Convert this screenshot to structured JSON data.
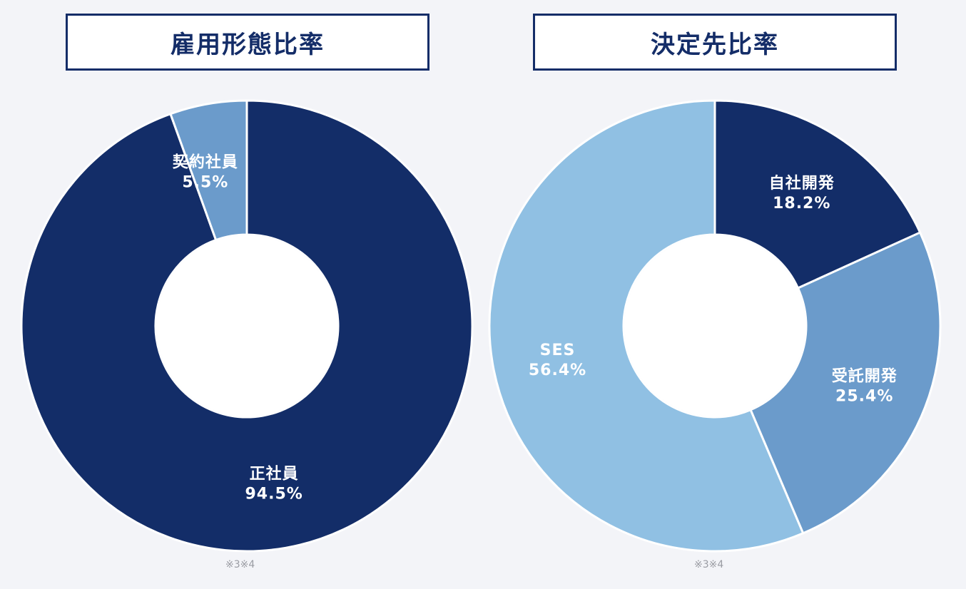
{
  "chart_data": [
    {
      "type": "pie",
      "title": "雇用形態比率",
      "donut": true,
      "footnote": "※3※4",
      "slices": [
        {
          "name": "正社員",
          "label": "94.5%",
          "value": 94.5,
          "color": "#132d68"
        },
        {
          "name": "契約社員",
          "label": "5.5%",
          "value": 5.5,
          "color": "#6b9bcb"
        }
      ]
    },
    {
      "type": "pie",
      "title": "決定先比率",
      "donut": true,
      "footnote": "※3※4",
      "slices": [
        {
          "name": "自社開発",
          "label": "18.2%",
          "value": 18.2,
          "color": "#132d68"
        },
        {
          "name": "受託開発",
          "label": "25.4%",
          "value": 25.4,
          "color": "#6b9bcb"
        },
        {
          "name": "SES",
          "label": "56.4%",
          "value": 56.4,
          "color": "#90c0e3"
        }
      ]
    }
  ]
}
